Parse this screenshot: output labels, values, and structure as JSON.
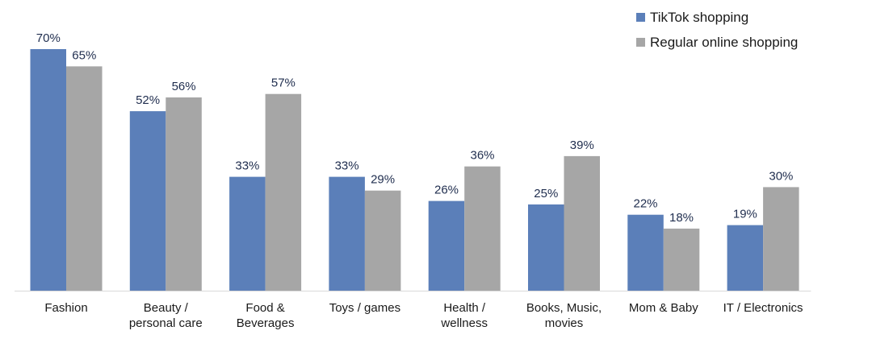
{
  "chart_data": {
    "type": "bar",
    "categories": [
      [
        "Fashion"
      ],
      [
        "Beauty /",
        "personal care"
      ],
      [
        "Food &",
        "Beverages"
      ],
      [
        "Toys / games"
      ],
      [
        "Health /",
        "wellness"
      ],
      [
        "Books, Music,",
        "movies"
      ],
      [
        "Mom & Baby"
      ],
      [
        "IT / Electronics"
      ]
    ],
    "series": [
      {
        "name": "TikTok shopping",
        "color": "#5b7fb9",
        "values": [
          70,
          52,
          33,
          33,
          26,
          25,
          22,
          19
        ],
        "labels": [
          "70%",
          "52%",
          "33%",
          "33%",
          "26%",
          "25%",
          "22%",
          "19%"
        ]
      },
      {
        "name": "Regular online shopping",
        "color": "#a6a6a6",
        "values": [
          65,
          56,
          57,
          29,
          36,
          39,
          18,
          30
        ],
        "labels": [
          "65%",
          "56%",
          "57%",
          "29%",
          "36%",
          "39%",
          "18%",
          "30%"
        ]
      }
    ],
    "ylim": [
      0,
      70
    ],
    "grid": false,
    "legend_position": "top-right",
    "axis_color": "#d9d9d9"
  }
}
